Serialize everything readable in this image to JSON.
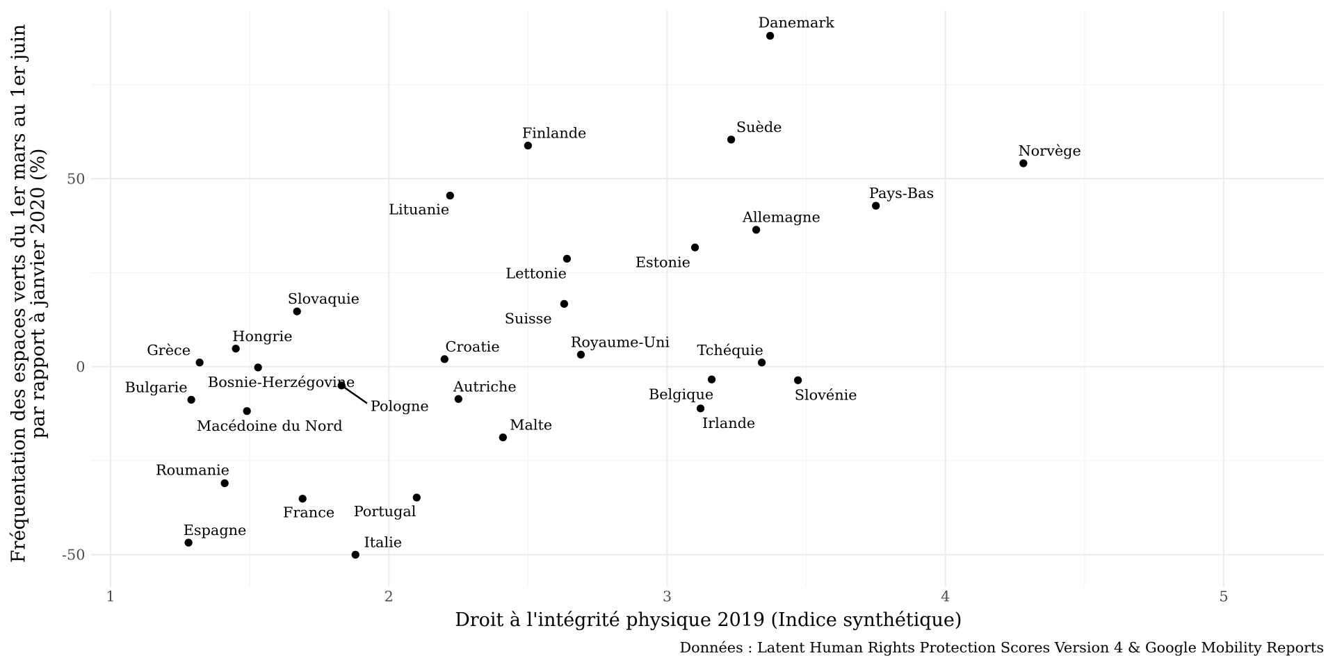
{
  "chart_data": {
    "type": "scatter",
    "title": "",
    "xlabel": "Droit à l'intégrité physique 2019 (Indice synthétique)",
    "ylabel_lines": [
      "Fréquentation des espaces verts du 1er mars au 1er juin",
      "par rapport à janvier 2020 (%)"
    ],
    "caption": "Données : Latent Human Rights Protection Scores Version 4 & Google Mobility Reports",
    "xlim": [
      0.93,
      5.36
    ],
    "ylim": [
      -58.6,
      94.8
    ],
    "x_ticks": [
      1,
      2,
      3,
      4,
      5
    ],
    "x_tick_labels": [
      "1",
      "2",
      "3",
      "4",
      "5"
    ],
    "y_ticks": [
      -50,
      0,
      50
    ],
    "y_tick_labels": [
      "-50",
      "0",
      "50"
    ],
    "grid": true,
    "point_color": "#000000",
    "points": [
      {
        "label": "Danemark",
        "x": 3.37,
        "y": 88.0
      },
      {
        "label": "Suède",
        "x": 3.23,
        "y": 60.4
      },
      {
        "label": "Finlande",
        "x": 2.5,
        "y": 58.8
      },
      {
        "label": "Norvège",
        "x": 4.28,
        "y": 54.1
      },
      {
        "label": "Lituanie",
        "x": 2.22,
        "y": 45.5
      },
      {
        "label": "Pays-Bas",
        "x": 3.75,
        "y": 42.8
      },
      {
        "label": "Allemagne",
        "x": 3.32,
        "y": 36.4
      },
      {
        "label": "Estonie",
        "x": 3.1,
        "y": 31.7
      },
      {
        "label": "Lettonie",
        "x": 2.64,
        "y": 28.7
      },
      {
        "label": "Suisse",
        "x": 2.63,
        "y": 16.7
      },
      {
        "label": "Slovaquie",
        "x": 1.67,
        "y": 14.7
      },
      {
        "label": "Hongrie",
        "x": 1.45,
        "y": 4.8
      },
      {
        "label": "Grèce",
        "x": 1.32,
        "y": 1.1
      },
      {
        "label": "Bosnie-Herzégovine",
        "x": 1.53,
        "y": -0.2
      },
      {
        "label": "Croatie",
        "x": 2.2,
        "y": 2.0
      },
      {
        "label": "Royaume-Uni",
        "x": 2.69,
        "y": 3.2
      },
      {
        "label": "Tchéquie",
        "x": 3.34,
        "y": 1.1
      },
      {
        "label": "Belgique",
        "x": 3.16,
        "y": -3.4
      },
      {
        "label": "Slovénie",
        "x": 3.47,
        "y": -3.6
      },
      {
        "label": "Pologne",
        "x": 1.83,
        "y": -5.0
      },
      {
        "label": "Bulgarie",
        "x": 1.29,
        "y": -8.8
      },
      {
        "label": "Autriche",
        "x": 2.25,
        "y": -8.6
      },
      {
        "label": "Irlande",
        "x": 3.12,
        "y": -11.1
      },
      {
        "label": "Macédoine du Nord",
        "x": 1.49,
        "y": -11.8
      },
      {
        "label": "Malte",
        "x": 2.41,
        "y": -18.8
      },
      {
        "label": "Roumanie",
        "x": 1.41,
        "y": -31.0
      },
      {
        "label": "France",
        "x": 1.69,
        "y": -35.1
      },
      {
        "label": "Portugal",
        "x": 2.1,
        "y": -34.8
      },
      {
        "label": "Espagne",
        "x": 1.28,
        "y": -46.8
      },
      {
        "label": "Italie",
        "x": 1.88,
        "y": -50.0
      }
    ]
  }
}
